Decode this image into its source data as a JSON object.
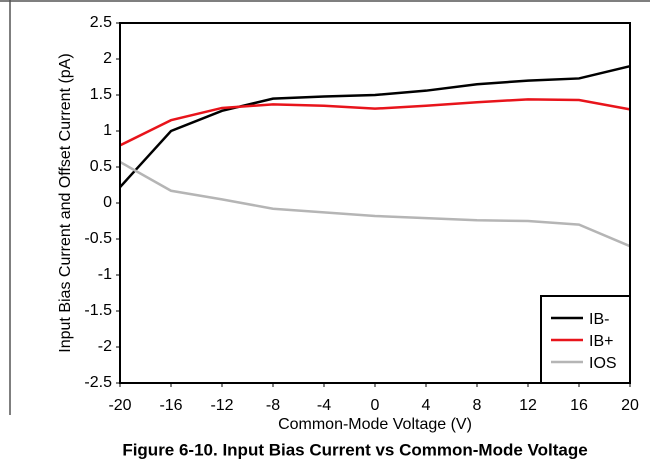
{
  "chart_data": {
    "type": "line",
    "title": "Figure 6-10. Input Bias Current vs Common-Mode Voltage",
    "x_label": "Common-Mode Voltage (V)",
    "y_label": "Input Bias Current and Offset Current (pA)",
    "x": [
      -20,
      -16,
      -12,
      -8,
      -4,
      0,
      4,
      8,
      12,
      16,
      20
    ],
    "series": [
      {
        "name": "IB-",
        "color": "#000000",
        "values": [
          0.22,
          1.0,
          1.28,
          1.45,
          1.48,
          1.5,
          1.56,
          1.65,
          1.7,
          1.73,
          1.9
        ]
      },
      {
        "name": "IB+",
        "color": "#e8141b",
        "values": [
          0.8,
          1.15,
          1.32,
          1.37,
          1.35,
          1.31,
          1.35,
          1.4,
          1.44,
          1.43,
          1.3
        ]
      },
      {
        "name": "IOS",
        "color": "#b5b5b5",
        "values": [
          0.57,
          0.17,
          0.05,
          -0.08,
          -0.13,
          -0.18,
          -0.21,
          -0.24,
          -0.25,
          -0.3,
          -0.6
        ]
      }
    ],
    "xlim": [
      -20,
      20
    ],
    "xticks": [
      -20,
      -16,
      -12,
      -8,
      -4,
      0,
      4,
      8,
      12,
      16,
      20
    ],
    "ylim": [
      -2.5,
      2.5
    ],
    "yticks": [
      -2.5,
      -2,
      -1.5,
      -1,
      -0.5,
      0,
      0.5,
      1,
      1.5,
      2,
      2.5
    ],
    "grid": false,
    "legend": "lower right"
  }
}
